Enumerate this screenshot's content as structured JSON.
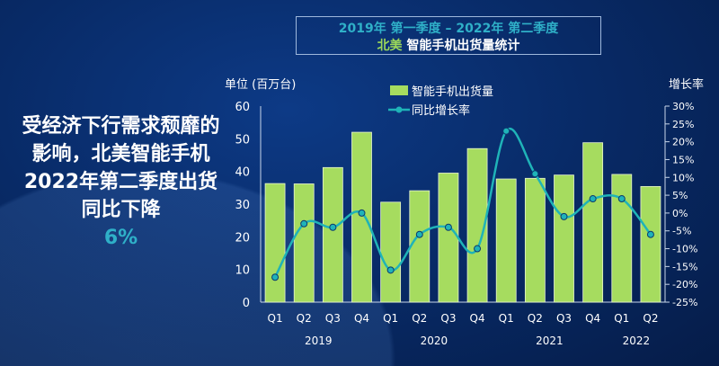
{
  "header": {
    "title_line1": "2019年 第一季度 – 2022年 第二季度",
    "title_region": "北美",
    "title_line2": "智能手机出货量统计"
  },
  "side_text": {
    "text": "受经济下行需求颓靡的影响，北美智能手机2022年第二季度出货同比下降",
    "highlight": "6%"
  },
  "chart_data": {
    "type": "bar+line",
    "ylabel": "单位 (百万台)",
    "y2label": "增长率",
    "ylim": [
      0,
      60
    ],
    "yticks": [
      0,
      10,
      20,
      30,
      40,
      50,
      60
    ],
    "y2lim": [
      -25,
      30
    ],
    "y2ticks": [
      "-25%",
      "-20%",
      "-15%",
      "-10%",
      "-5%",
      "0%",
      "5%",
      "10%",
      "15%",
      "20%",
      "25%",
      "30%"
    ],
    "categories": [
      "Q1",
      "Q2",
      "Q3",
      "Q4",
      "Q1",
      "Q2",
      "Q3",
      "Q4",
      "Q1",
      "Q2",
      "Q3",
      "Q4",
      "Q1",
      "Q2"
    ],
    "years": [
      "2019",
      "2020",
      "2021",
      "2022"
    ],
    "legend_placement": "top-center",
    "grid": false,
    "series": [
      {
        "name": "智能手机出货量",
        "type": "bar",
        "color": "#a6dc5f",
        "values": [
          36.3,
          36.2,
          41.2,
          52,
          30.6,
          34.1,
          39.5,
          47,
          37.7,
          37.9,
          38.9,
          48.8,
          39.1,
          35.4
        ]
      },
      {
        "name": "同比增长率",
        "type": "line",
        "axis": "right",
        "color": "#1fb3b8",
        "values": [
          -18,
          -3,
          -4,
          0,
          -16,
          -6,
          -4,
          -10,
          23,
          11,
          -1,
          4,
          4,
          -6
        ]
      }
    ]
  }
}
